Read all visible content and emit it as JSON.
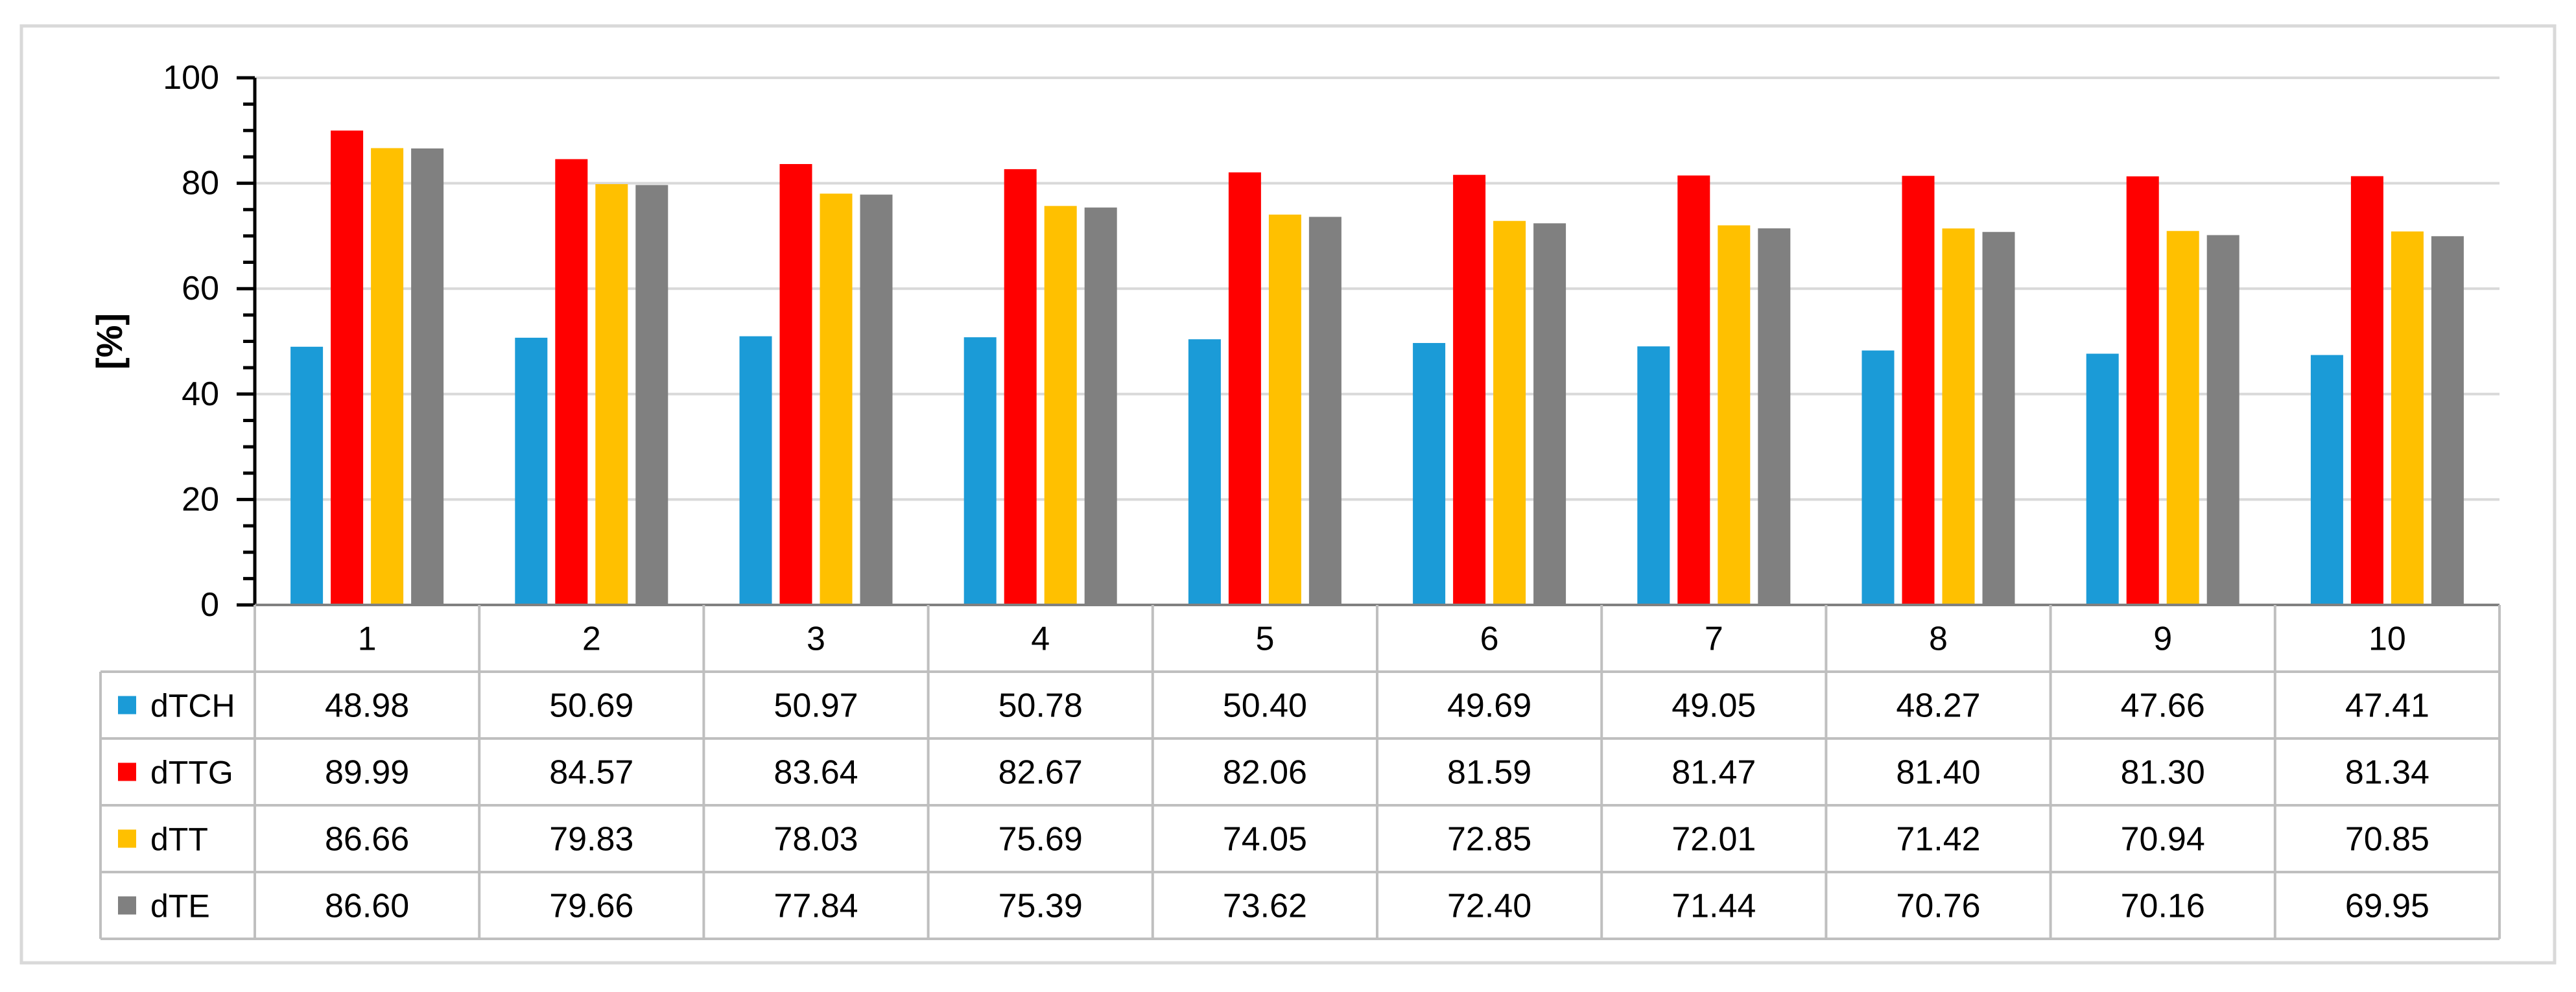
{
  "chart_data": {
    "type": "bar",
    "title": "",
    "xlabel": "",
    "ylabel": "[%]",
    "ylim": [
      0,
      100
    ],
    "yticks": [
      0,
      20,
      40,
      60,
      80,
      100
    ],
    "grid": true,
    "legend_placement": "data-table",
    "categories": [
      "1",
      "2",
      "3",
      "4",
      "5",
      "6",
      "7",
      "8",
      "9",
      "10"
    ],
    "series": [
      {
        "name": "dTCH",
        "color": "#1B9BD7",
        "values": [
          48.98,
          50.69,
          50.97,
          50.78,
          50.4,
          49.69,
          49.05,
          48.27,
          47.66,
          47.41
        ],
        "labels": [
          "48.98",
          "50.69",
          "50.97",
          "50.78",
          "50.40",
          "49.69",
          "49.05",
          "48.27",
          "47.66",
          "47.41"
        ]
      },
      {
        "name": "dTTG",
        "color": "#FF0000",
        "values": [
          89.99,
          84.57,
          83.64,
          82.67,
          82.06,
          81.59,
          81.47,
          81.4,
          81.3,
          81.34
        ],
        "labels": [
          "89.99",
          "84.57",
          "83.64",
          "82.67",
          "82.06",
          "81.59",
          "81.47",
          "81.40",
          "81.30",
          "81.34"
        ]
      },
      {
        "name": "dTT",
        "color": "#FFC000",
        "values": [
          86.66,
          79.83,
          78.03,
          75.69,
          74.05,
          72.85,
          72.01,
          71.42,
          70.94,
          70.85
        ],
        "labels": [
          "86.66",
          "79.83",
          "78.03",
          "75.69",
          "74.05",
          "72.85",
          "72.01",
          "71.42",
          "70.94",
          "70.85"
        ]
      },
      {
        "name": "dTE",
        "color": "#808080",
        "values": [
          86.6,
          79.66,
          77.84,
          75.39,
          73.62,
          72.4,
          71.44,
          70.76,
          70.16,
          69.95
        ],
        "labels": [
          "86.60",
          "79.66",
          "77.84",
          "75.39",
          "73.62",
          "72.40",
          "71.44",
          "70.76",
          "70.16",
          "69.95"
        ]
      }
    ]
  }
}
